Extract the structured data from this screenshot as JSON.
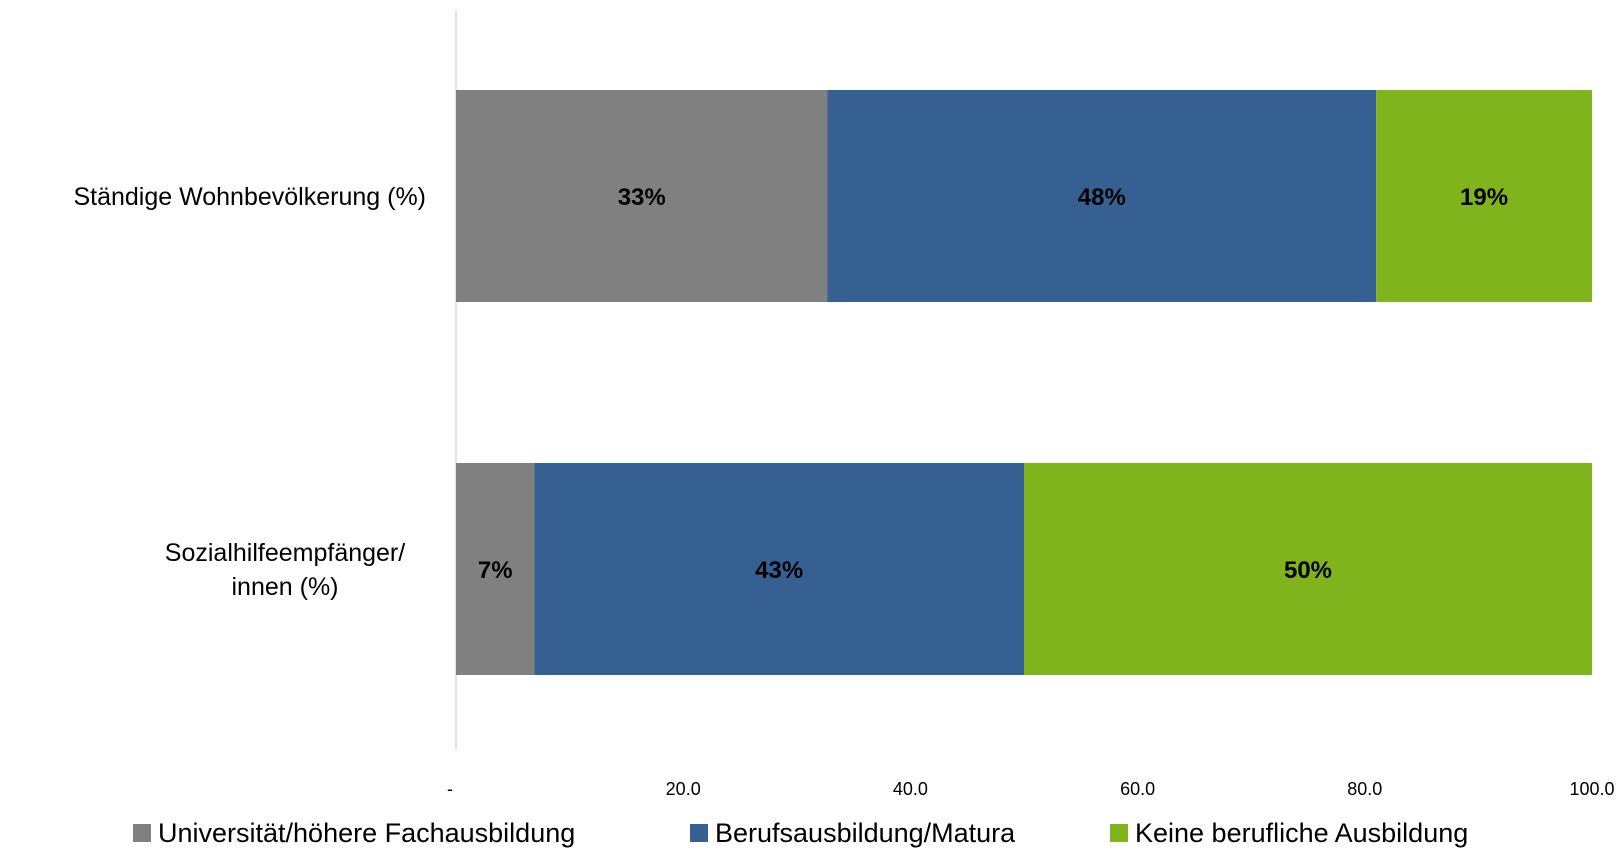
{
  "chart_data": {
    "type": "bar",
    "orientation": "horizontal",
    "stacked": true,
    "categories": [
      "Ständige Wohnbevölkerung (%)",
      "Sozialhilfeempfänger/ innen (%)"
    ],
    "category_label_lines": [
      [
        "Ständige Wohnbevölkerung (%)"
      ],
      [
        "Sozialhilfeempfänger/",
        "innen (%)"
      ]
    ],
    "series": [
      {
        "name": "Universität/höhere Fachausbildung",
        "color": "#808080",
        "values": [
          32.7,
          6.9
        ],
        "labels": [
          "33%",
          "7%"
        ]
      },
      {
        "name": "Berufsausbildung/Matura",
        "color": "#376092",
        "values": [
          48.3,
          43.1
        ],
        "labels": [
          "48%",
          "43%"
        ]
      },
      {
        "name": "Keine berufliche Ausbildung",
        "color": "#7fb41d",
        "values": [
          19.0,
          50.0
        ],
        "labels": [
          "19%",
          "50%"
        ]
      }
    ],
    "xlim": [
      0,
      100
    ],
    "x_ticks": [
      0,
      20,
      40,
      60,
      80,
      100
    ],
    "x_tick_labels": [
      "-",
      "20.0",
      "40.0",
      "60.0",
      "80.0",
      "100.0"
    ],
    "title": "",
    "xlabel": "",
    "ylabel": "",
    "grid": false,
    "legend_position": "bottom"
  }
}
